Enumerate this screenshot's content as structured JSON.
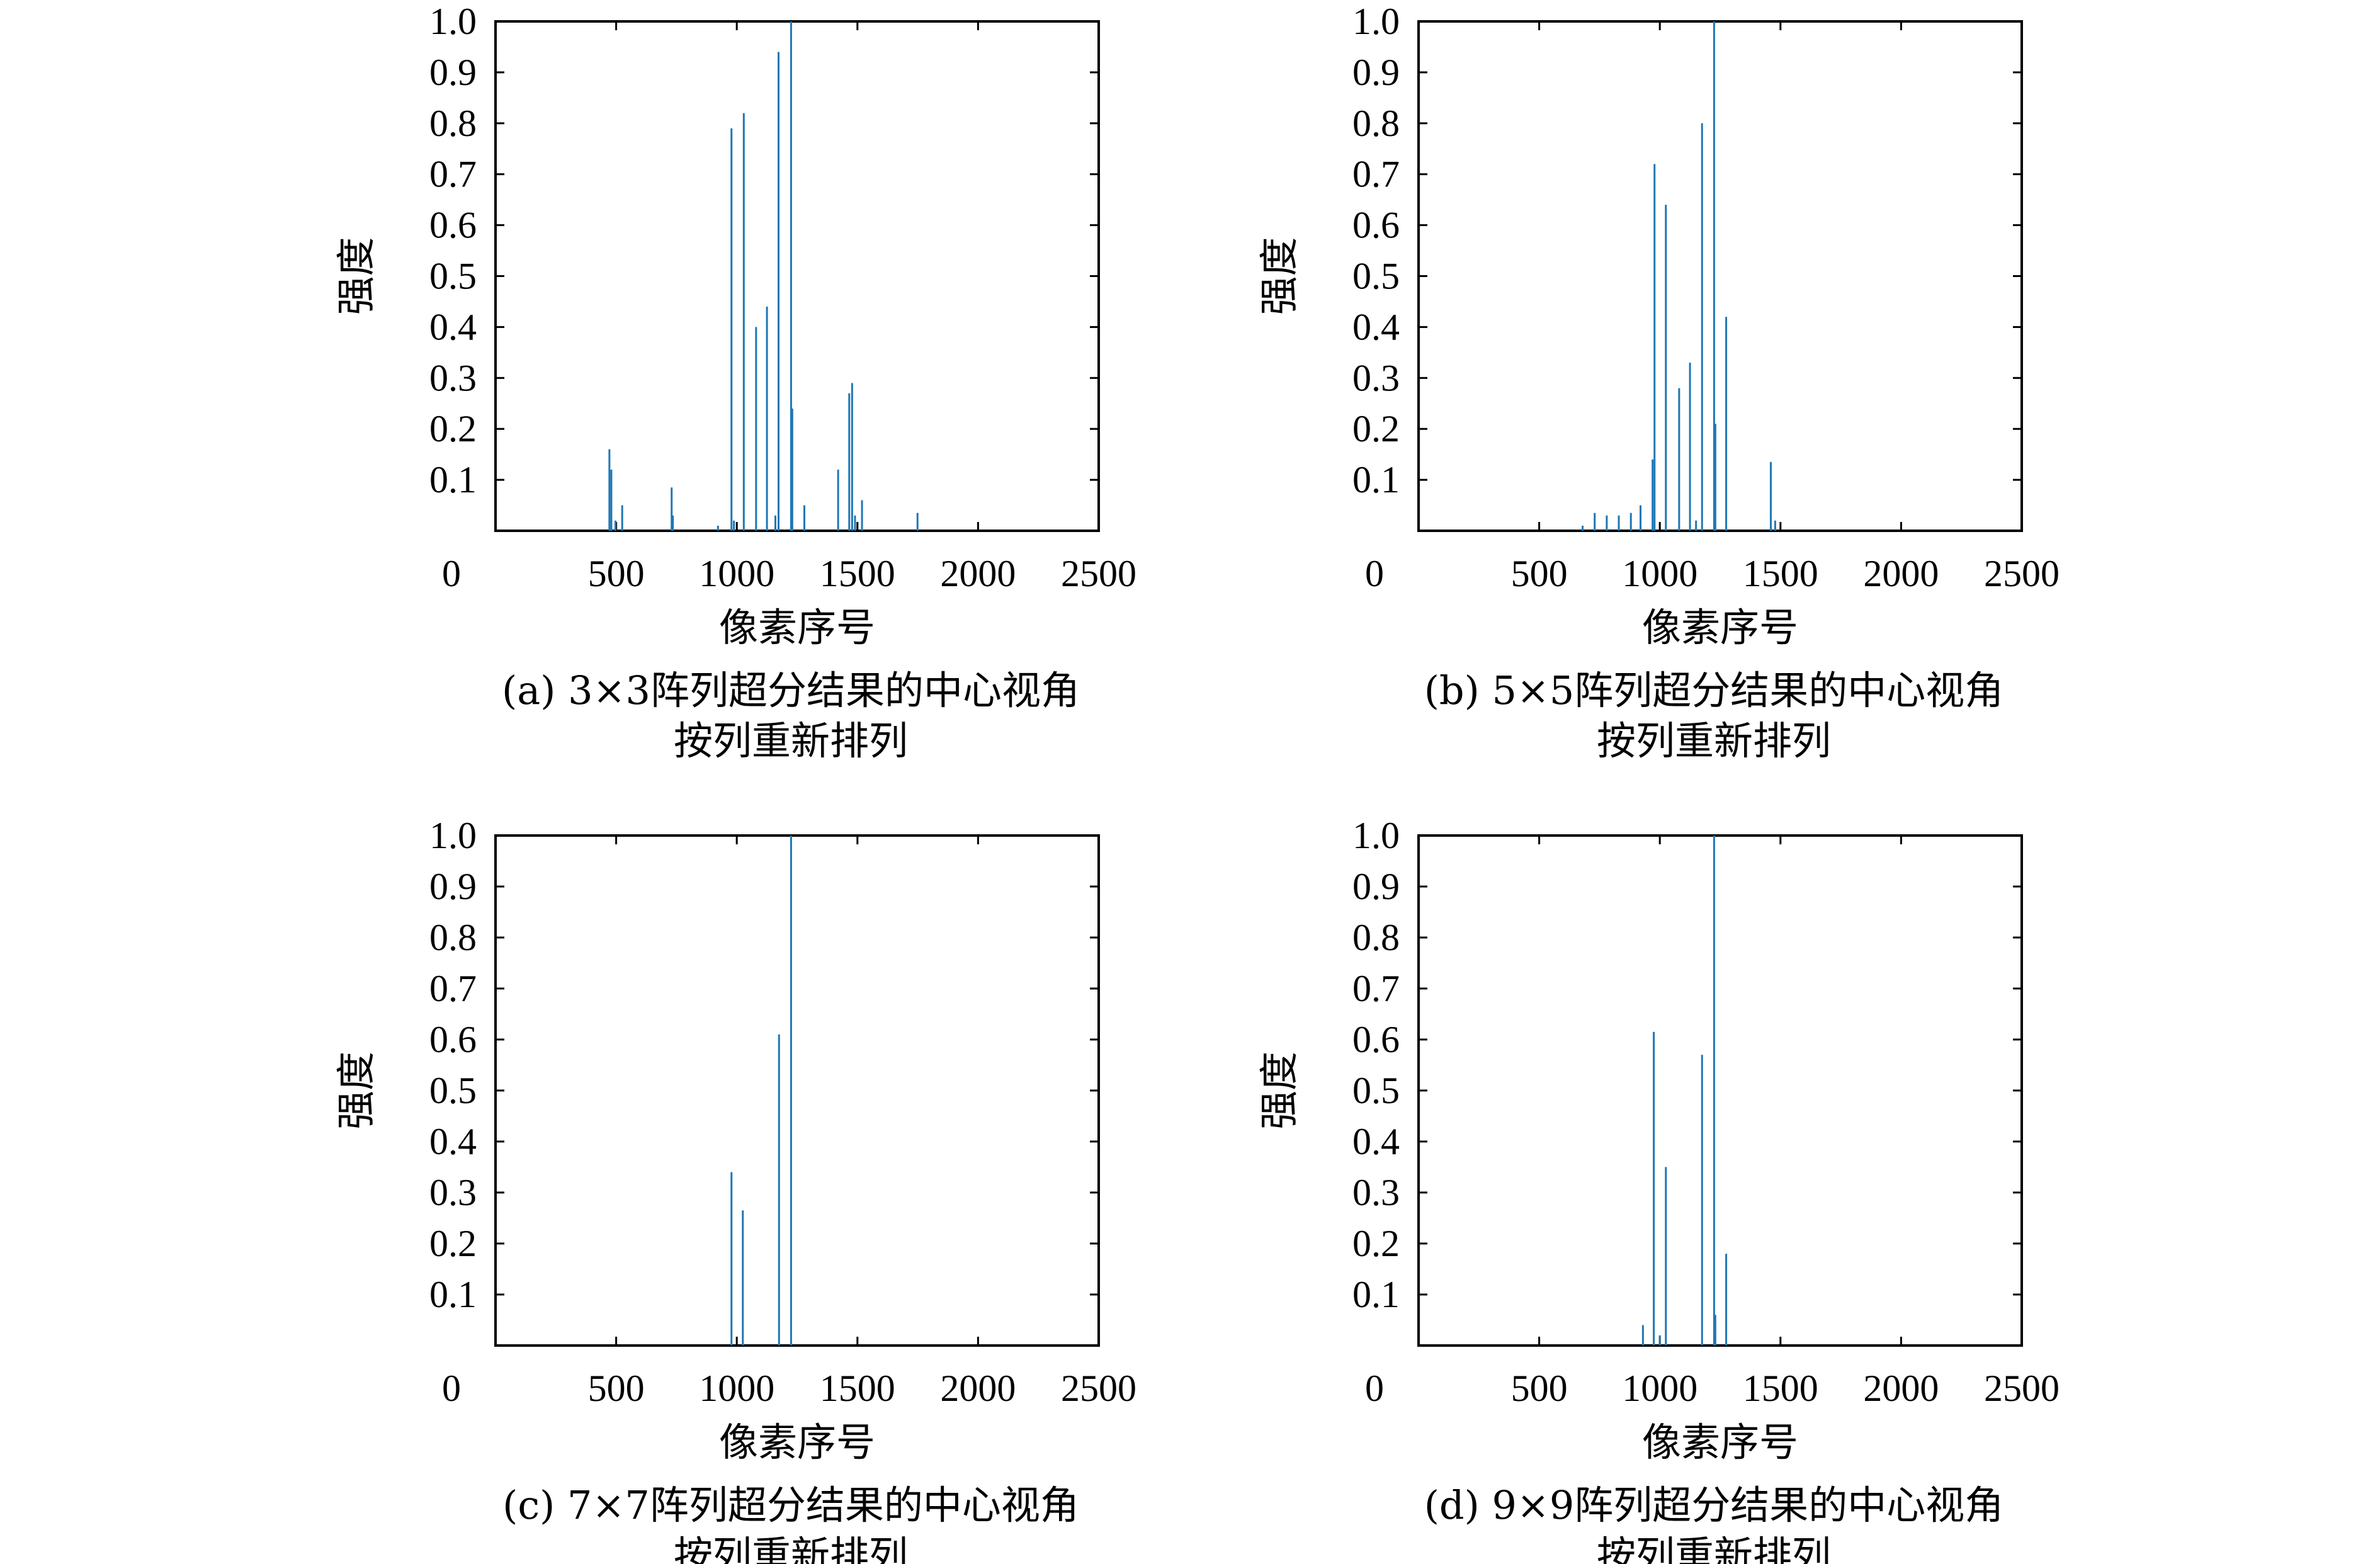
{
  "chart_data": [
    {
      "type": "bar",
      "caption": [
        "(a) 3×3阵列超分结果的中心视角",
        "按列重新排列"
      ],
      "xlabel": "像素序号",
      "ylabel": "强度",
      "xlim": [
        0,
        2500
      ],
      "ylim": [
        0,
        1.0
      ],
      "xticks": [
        "0",
        "500",
        "1000",
        "1500",
        "2000",
        "2500"
      ],
      "yticks": [
        "0.1",
        "0.2",
        "0.3",
        "0.4",
        "0.5",
        "0.6",
        "0.7",
        "0.8",
        "0.9",
        "1.0"
      ],
      "color": "#1f77b4",
      "x": [
        472,
        480,
        497,
        525,
        730,
        735,
        922,
        978,
        988,
        1029,
        1080,
        1125,
        1160,
        1173,
        1225,
        1230,
        1280,
        1420,
        1466,
        1478,
        1490,
        1519,
        1749
      ],
      "values": [
        0.16,
        0.12,
        0.02,
        0.05,
        0.085,
        0.03,
        0.01,
        0.79,
        0.02,
        0.82,
        0.4,
        0.44,
        0.03,
        0.94,
        1.0,
        0.24,
        0.05,
        0.12,
        0.27,
        0.29,
        0.03,
        0.06,
        0.035
      ]
    },
    {
      "type": "bar",
      "caption": [
        "(b) 5×5阵列超分结果的中心视角",
        "按列重新排列"
      ],
      "xlabel": "像素序号",
      "ylabel": "强度",
      "xlim": [
        0,
        2500
      ],
      "ylim": [
        0,
        1.0
      ],
      "xticks": [
        "0",
        "500",
        "1000",
        "1500",
        "2000",
        "2500"
      ],
      "yticks": [
        "0.1",
        "0.2",
        "0.3",
        "0.4",
        "0.5",
        "0.6",
        "0.7",
        "0.8",
        "0.9",
        "1.0"
      ],
      "color": "#1f77b4",
      "x": [
        680,
        730,
        780,
        830,
        880,
        920,
        970,
        978,
        1025,
        1080,
        1125,
        1150,
        1175,
        1225,
        1230,
        1275,
        1460,
        1478
      ],
      "values": [
        0.01,
        0.035,
        0.03,
        0.03,
        0.035,
        0.05,
        0.14,
        0.72,
        0.64,
        0.28,
        0.33,
        0.02,
        0.8,
        1.0,
        0.21,
        0.42,
        0.135,
        0.02
      ]
    },
    {
      "type": "bar",
      "caption": [
        "(c) 7×7阵列超分结果的中心视角",
        "按列重新排列"
      ],
      "xlabel": "像素序号",
      "ylabel": "强度",
      "xlim": [
        0,
        2500
      ],
      "ylim": [
        0,
        1.0
      ],
      "xticks": [
        "0",
        "500",
        "1000",
        "1500",
        "2000",
        "2500"
      ],
      "yticks": [
        "0.1",
        "0.2",
        "0.3",
        "0.4",
        "0.5",
        "0.6",
        "0.7",
        "0.8",
        "0.9",
        "1.0"
      ],
      "color": "#1f77b4",
      "x": [
        978,
        1025,
        1175,
        1225
      ],
      "values": [
        0.34,
        0.265,
        0.61,
        1.0
      ]
    },
    {
      "type": "bar",
      "caption": [
        "(d) 9×9阵列超分结果的中心视角",
        "按列重新排列"
      ],
      "xlabel": "像素序号",
      "ylabel": "强度",
      "xlim": [
        0,
        2500
      ],
      "ylim": [
        0,
        1.0
      ],
      "xticks": [
        "0",
        "500",
        "1000",
        "1500",
        "2000",
        "2500"
      ],
      "yticks": [
        "0.1",
        "0.2",
        "0.3",
        "0.4",
        "0.5",
        "0.6",
        "0.7",
        "0.8",
        "0.9",
        "1.0"
      ],
      "color": "#1f77b4",
      "x": [
        930,
        975,
        1000,
        1025,
        1175,
        1225,
        1230,
        1275
      ],
      "values": [
        0.04,
        0.615,
        0.02,
        0.35,
        0.57,
        1.0,
        0.06,
        0.18
      ]
    }
  ]
}
